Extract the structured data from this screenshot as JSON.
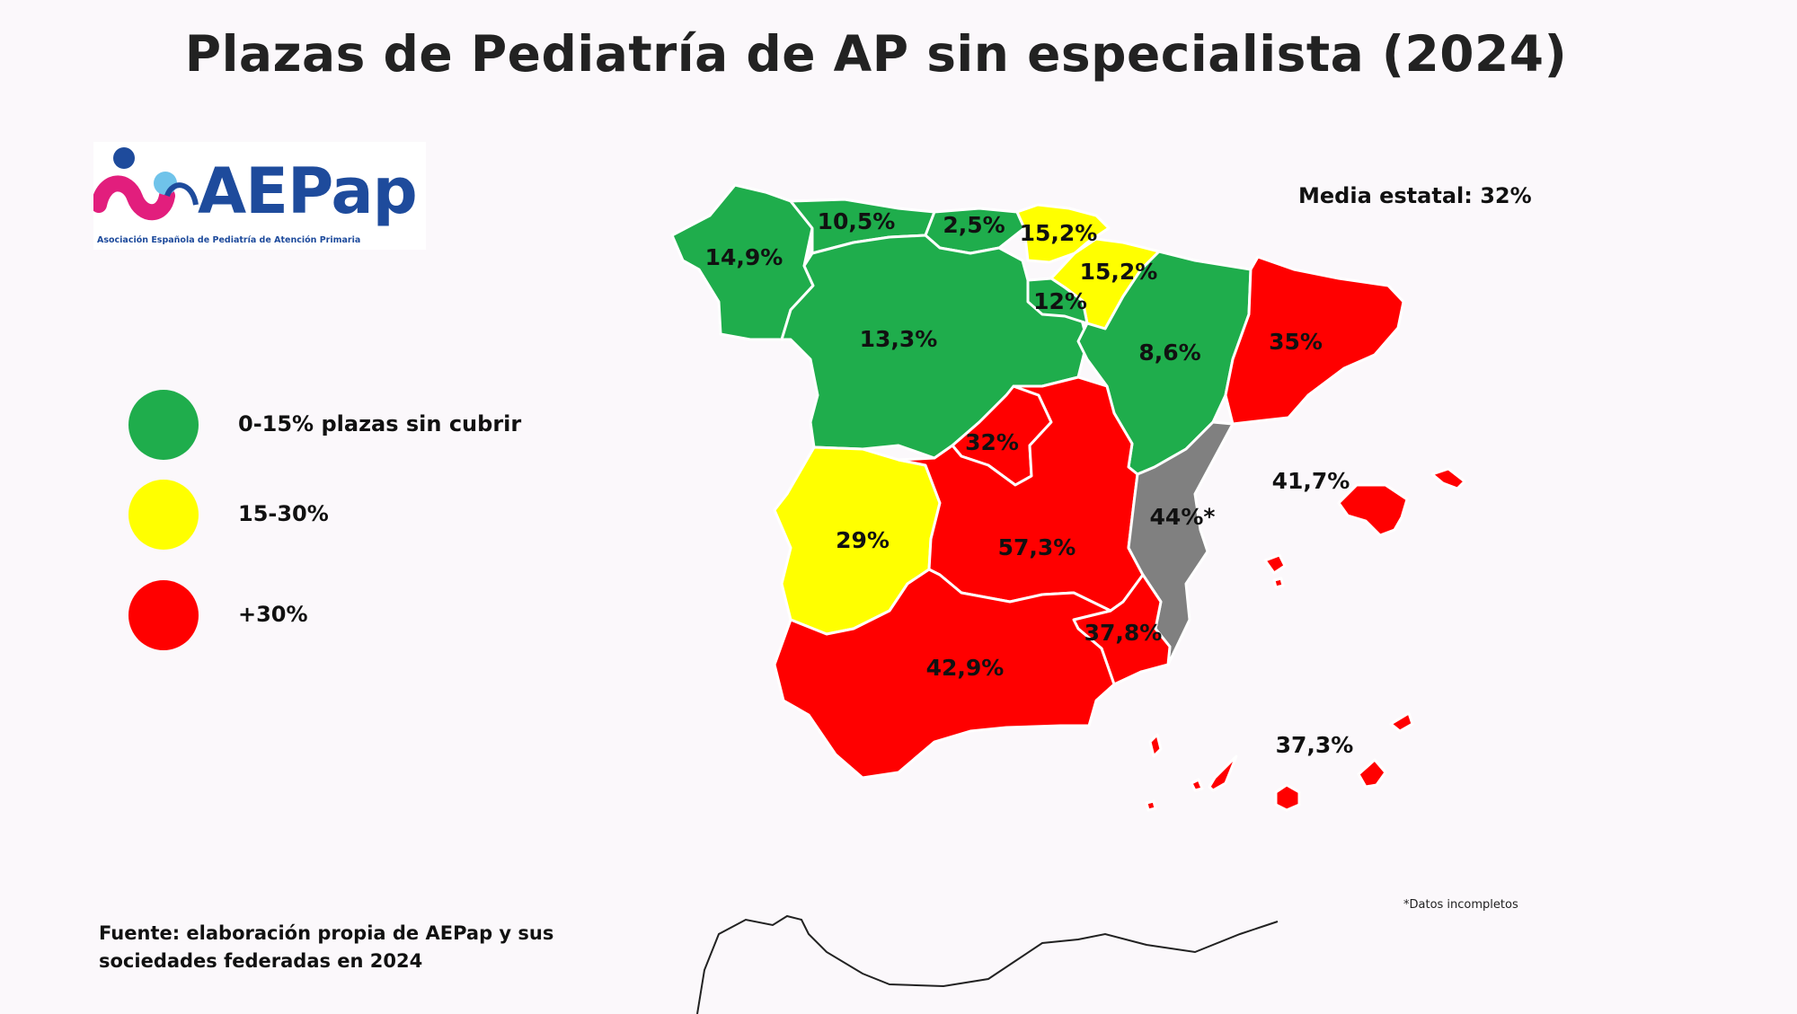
{
  "title": "Plazas de Pediatría de AP sin especialista (2024)",
  "logo": {
    "name": "AEPap",
    "subtitle": "Asociación Española de Pediatría de Atención Primaria",
    "colors": {
      "figure_magenta": "#e21e7d",
      "figure_blue": "#1e4b9c",
      "figure_light_blue": "#6fc3ea"
    }
  },
  "legend": [
    {
      "label": "0-15% plazas sin cubrir",
      "color": "#1fad4c"
    },
    {
      "label": "15-30%",
      "color": "#ffff00"
    },
    {
      "label": "+30%",
      "color": "#ff0000"
    }
  ],
  "other_colors": {
    "incomplete": "#808080",
    "background": "#fbf8fb"
  },
  "media_estatal": "Media estatal: 32%",
  "footnote": "*Datos incompletos",
  "source": {
    "line1": "Fuente: elaboración propia de AEPap y sus",
    "line2": "sociedades federadas en 2024"
  },
  "regions": [
    {
      "name": "Galicia",
      "value": "14,9%",
      "class": "0-15"
    },
    {
      "name": "Asturias",
      "value": "10,5%",
      "class": "0-15"
    },
    {
      "name": "Cantabria",
      "value": "2,5%",
      "class": "0-15"
    },
    {
      "name": "País Vasco",
      "value": "15,2%",
      "class": "15-30"
    },
    {
      "name": "Navarra",
      "value": "15,2%",
      "class": "15-30"
    },
    {
      "name": "La Rioja",
      "value": "12%",
      "class": "0-15"
    },
    {
      "name": "Castilla y León",
      "value": "13,3%",
      "class": "0-15"
    },
    {
      "name": "Aragón",
      "value": "8,6%",
      "class": "0-15"
    },
    {
      "name": "Cataluña",
      "value": "35%",
      "class": "+30"
    },
    {
      "name": "Madrid",
      "value": "32%",
      "class": "+30"
    },
    {
      "name": "Extremadura",
      "value": "29%",
      "class": "15-30"
    },
    {
      "name": "Castilla-La Mancha",
      "value": "57,3%",
      "class": "+30"
    },
    {
      "name": "Comunidad Valenciana",
      "value": "44%*",
      "class": "incomplete"
    },
    {
      "name": "Islas Baleares",
      "value": "41,7%",
      "class": "+30"
    },
    {
      "name": "Murcia",
      "value": "37,8%",
      "class": "+30"
    },
    {
      "name": "Andalucía",
      "value": "42,9%",
      "class": "+30"
    },
    {
      "name": "Canarias",
      "value": "37,3%",
      "class": "+30"
    }
  ]
}
